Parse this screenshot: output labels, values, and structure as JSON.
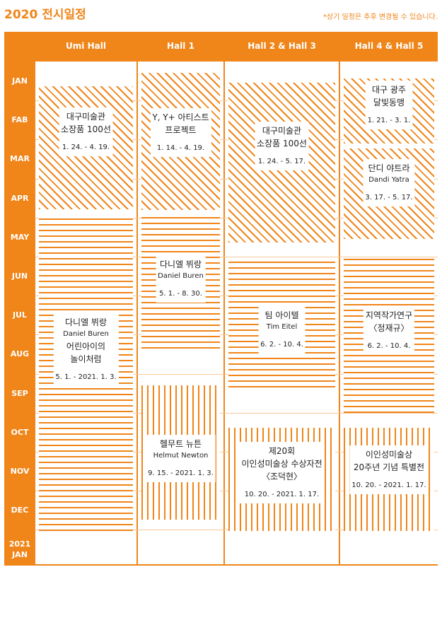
{
  "title": "2020 전시일정",
  "note": "*상기 일정은 추후 변경될 수 있습니다.",
  "halls": [
    "Umi Hall",
    "Hall 1",
    "Hall 2 & Hall 3",
    "Hall 4 & Hall 5"
  ],
  "months": [
    "JAN",
    "FAB",
    "MAR",
    "APR",
    "MAY",
    "JUN",
    "JUL",
    "AUG",
    "SEP",
    "OCT",
    "NOV",
    "DEC",
    "2021\nJAN"
  ],
  "colors": {
    "accent": "#f08519",
    "background": "#ffffff",
    "text": "#222222"
  },
  "exhibitions": [
    {
      "hall": "Umi Hall",
      "lines": [
        "대구미술관",
        "소장품 100선"
      ],
      "dates": "1. 24. - 4. 19.",
      "pattern": "diagonal"
    },
    {
      "hall": "Umi Hall",
      "lines": [
        "다니엘 뷔랑",
        "Daniel Buren",
        "어린아이의",
        "놀이처럼"
      ],
      "dates": "5. 1. - 2021. 1. 3.",
      "pattern": "horizontal"
    },
    {
      "hall": "Hall 1",
      "lines": [
        "Y, Y+ 아티스트",
        "프로젝트"
      ],
      "dates": "1. 14. - 4. 19.",
      "pattern": "diagonal"
    },
    {
      "hall": "Hall 1",
      "lines": [
        "다니엘 뷔랑",
        "Daniel Buren"
      ],
      "dates": "5. 1. - 8. 30.",
      "pattern": "horizontal"
    },
    {
      "hall": "Hall 1",
      "lines": [
        "헬무트 뉴튼",
        "Helmut Newton"
      ],
      "dates": "9. 15. - 2021. 1. 3.",
      "pattern": "vertical"
    },
    {
      "hall": "Hall 2 & Hall 3",
      "lines": [
        "대구미술관",
        "소장품 100선"
      ],
      "dates": "1. 24. - 5. 17.",
      "pattern": "diagonal"
    },
    {
      "hall": "Hall 2 & Hall 3",
      "lines": [
        "팀 아이텔",
        "Tim Eitel"
      ],
      "dates": "6. 2. - 10. 4.",
      "pattern": "horizontal"
    },
    {
      "hall": "Hall 2 & Hall 3",
      "lines": [
        "제20회",
        "이인성미술상 수상자전",
        "〈조덕현〉"
      ],
      "dates": "10. 20. - 2021. 1. 17.",
      "pattern": "vertical"
    },
    {
      "hall": "Hall 4 & Hall 5",
      "lines": [
        "대구 광주",
        "달빛동맹"
      ],
      "dates": "1. 21. - 3. 1.",
      "pattern": "diagonal"
    },
    {
      "hall": "Hall 4 & Hall 5",
      "lines": [
        "단디 야트라",
        "Dandi Yatra"
      ],
      "dates": "3. 17. - 5. 17.",
      "pattern": "diagonal"
    },
    {
      "hall": "Hall 4 & Hall 5",
      "lines": [
        "지역작가연구",
        "〈정재규〉"
      ],
      "dates": "6. 2. - 10. 4.",
      "pattern": "horizontal"
    },
    {
      "hall": "Hall 4 & Hall 5",
      "lines": [
        "이인성미술상",
        "20주년 기념 특별전"
      ],
      "dates": "10. 20. - 2021. 1. 17.",
      "pattern": "vertical"
    }
  ]
}
